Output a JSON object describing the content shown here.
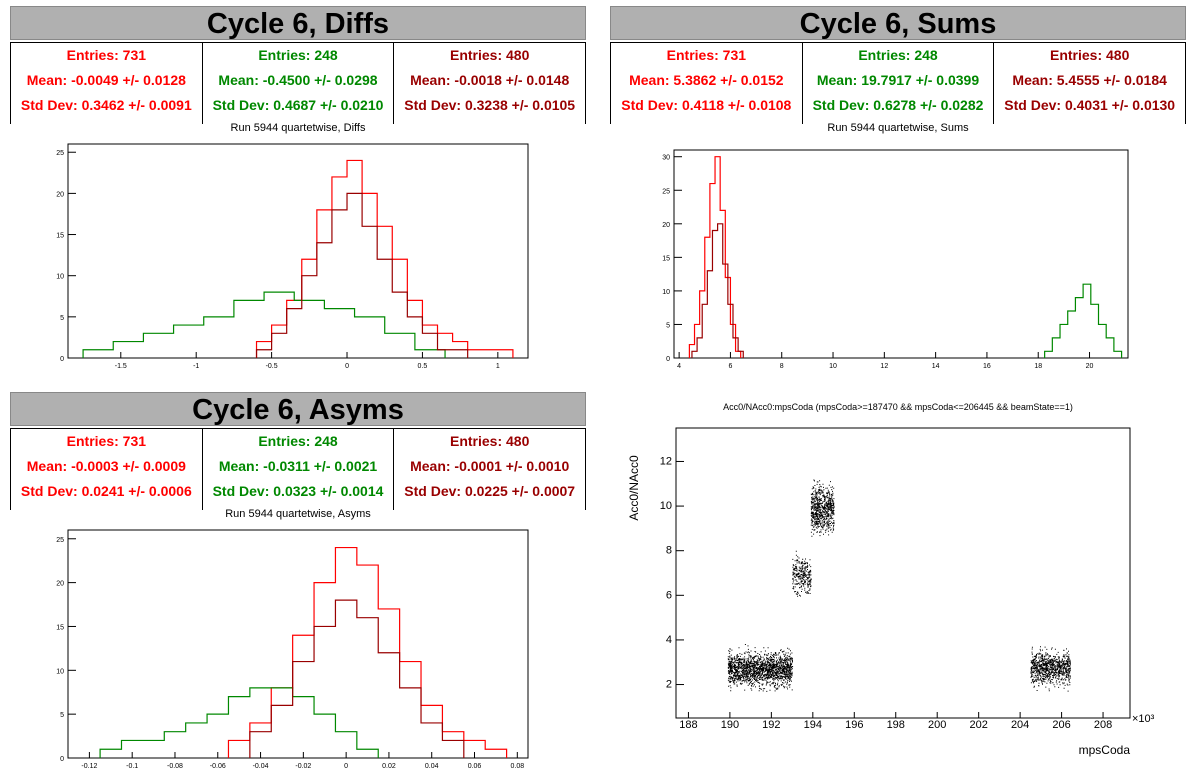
{
  "colors": {
    "red": "#ff0000",
    "green": "#008800",
    "darkred": "#990000",
    "header_bg": "#b0b0b0"
  },
  "panels": {
    "diffs": {
      "title": "Cycle 6, Diffs",
      "subtitle": "Run 5944 quartetwise, Diffs",
      "stats": [
        {
          "entries": "Entries: 731",
          "mean": "Mean: -0.0049 +/- 0.0128",
          "std": "Std Dev: 0.3462 +/- 0.0091",
          "color": "#ff0000"
        },
        {
          "entries": "Entries: 248",
          "mean": "Mean: -0.4500 +/- 0.0298",
          "std": "Std Dev: 0.4687 +/- 0.0210",
          "color": "#008800"
        },
        {
          "entries": "Entries: 480",
          "mean": "Mean: -0.0018 +/- 0.0148",
          "std": "Std Dev: 0.3238 +/- 0.0105",
          "color": "#990000"
        }
      ]
    },
    "sums": {
      "title": "Cycle 6, Sums",
      "subtitle": "Run 5944 quartetwise, Sums",
      "stats": [
        {
          "entries": "Entries: 731",
          "mean": "Mean: 5.3862 +/- 0.0152",
          "std": "Std Dev: 0.4118 +/- 0.0108",
          "color": "#ff0000"
        },
        {
          "entries": "Entries: 248",
          "mean": "Mean: 19.7917 +/- 0.0399",
          "std": "Std Dev: 0.6278 +/- 0.0282",
          "color": "#008800"
        },
        {
          "entries": "Entries: 480",
          "mean": "Mean: 5.4555 +/- 0.0184",
          "std": "Std Dev: 0.4031 +/- 0.0130",
          "color": "#990000"
        }
      ]
    },
    "asyms": {
      "title": "Cycle 6, Asyms",
      "subtitle": "Run 5944 quartetwise, Asyms",
      "stats": [
        {
          "entries": "Entries: 731",
          "mean": "Mean: -0.0003 +/- 0.0009",
          "std": "Std Dev: 0.0241 +/- 0.0006",
          "color": "#ff0000"
        },
        {
          "entries": "Entries: 248",
          "mean": "Mean: -0.0311 +/- 0.0021",
          "std": "Std Dev: 0.0323 +/- 0.0014",
          "color": "#008800"
        },
        {
          "entries": "Entries: 480",
          "mean": "Mean: -0.0001 +/- 0.0010",
          "std": "Std Dev: 0.0225 +/- 0.0007",
          "color": "#990000"
        }
      ]
    },
    "scatter": {
      "title": "Acc0/NAcc0:mpsCoda (mpsCoda>=187470 && mpsCoda<=206445 && beamState==1)"
    }
  },
  "chart_data": [
    {
      "type": "histogram-step",
      "title": "Run 5944 quartetwise, Diffs",
      "xlim": [
        -1.85,
        1.2
      ],
      "ylim": [
        0,
        26
      ],
      "x_ticks": [
        -1.5,
        -1,
        -0.5,
        0,
        0.5,
        1
      ],
      "x_tick_labels": [
        "-1.5",
        "-1",
        "-0.5",
        "0",
        "0.5",
        "1"
      ],
      "y_ticks": [
        0,
        5,
        10,
        15,
        20,
        25
      ],
      "series": [
        {
          "color": "#ff0000",
          "centers": [
            -0.55,
            -0.45,
            -0.35,
            -0.25,
            -0.15,
            -0.05,
            0.05,
            0.15,
            0.25,
            0.35,
            0.45,
            0.55,
            0.65,
            0.75,
            0.85,
            0.95,
            1.05
          ],
          "counts": [
            2,
            4,
            7,
            12,
            18,
            22,
            24,
            20,
            16,
            12,
            7,
            4,
            3,
            2,
            1,
            1,
            1
          ]
        },
        {
          "color": "#008800",
          "centers": [
            -1.65,
            -1.45,
            -1.25,
            -1.05,
            -0.85,
            -0.65,
            -0.45,
            -0.25,
            -0.05,
            0.15,
            0.35,
            0.55
          ],
          "counts": [
            1,
            2,
            3,
            4,
            5,
            7,
            8,
            7,
            6,
            5,
            3,
            1
          ]
        },
        {
          "color": "#990000",
          "centers": [
            -0.55,
            -0.45,
            -0.35,
            -0.25,
            -0.15,
            -0.05,
            0.05,
            0.15,
            0.25,
            0.35,
            0.45,
            0.55,
            0.65,
            0.75
          ],
          "counts": [
            1,
            3,
            6,
            10,
            14,
            18,
            20,
            16,
            12,
            8,
            5,
            3,
            1,
            1
          ]
        }
      ]
    },
    {
      "type": "histogram-step",
      "title": "Run 5944 quartetwise, Sums",
      "xlim": [
        3.8,
        21.5
      ],
      "ylim": [
        0,
        31
      ],
      "x_ticks": [
        4,
        6,
        8,
        10,
        12,
        14,
        16,
        18,
        20
      ],
      "x_tick_labels": [
        "4",
        "6",
        "8",
        "10",
        "12",
        "14",
        "16",
        "18",
        "20"
      ],
      "y_ticks": [
        0,
        5,
        10,
        15,
        20,
        25,
        30
      ],
      "series": [
        {
          "color": "#ff0000",
          "centers": [
            4.5,
            4.7,
            4.9,
            5.1,
            5.3,
            5.5,
            5.7,
            5.9,
            6.1,
            6.3
          ],
          "counts": [
            2,
            5,
            10,
            18,
            26,
            30,
            22,
            12,
            5,
            1
          ]
        },
        {
          "color": "#990000",
          "centers": [
            4.6,
            4.8,
            5.0,
            5.2,
            5.4,
            5.6,
            5.8,
            6.0,
            6.2,
            6.4
          ],
          "counts": [
            1,
            3,
            8,
            13,
            19,
            20,
            14,
            8,
            3,
            1
          ]
        },
        {
          "color": "#008800",
          "centers": [
            18.4,
            18.7,
            19.0,
            19.3,
            19.6,
            19.9,
            20.2,
            20.5,
            20.8,
            21.1
          ],
          "counts": [
            1,
            3,
            5,
            7,
            9,
            11,
            8,
            5,
            3,
            1
          ]
        }
      ]
    },
    {
      "type": "histogram-step",
      "title": "Run 5944 quartetwise, Asyms",
      "xlim": [
        -0.13,
        0.085
      ],
      "ylim": [
        0,
        26
      ],
      "x_ticks": [
        -0.12,
        -0.1,
        -0.08,
        -0.06,
        -0.04,
        -0.02,
        0,
        0.02,
        0.04,
        0.06,
        0.08
      ],
      "x_tick_labels": [
        "-0.12",
        "-0.1",
        "-0.08",
        "-0.06",
        "-0.04",
        "-0.02",
        "0",
        "0.02",
        "0.04",
        "0.06",
        "0.08"
      ],
      "y_ticks": [
        0,
        5,
        10,
        15,
        20,
        25
      ],
      "series": [
        {
          "color": "#ff0000",
          "centers": [
            -0.05,
            -0.04,
            -0.03,
            -0.02,
            -0.01,
            0,
            0.01,
            0.02,
            0.03,
            0.04,
            0.05,
            0.06,
            0.07
          ],
          "counts": [
            2,
            4,
            8,
            14,
            20,
            24,
            22,
            17,
            11,
            6,
            3,
            2,
            1
          ]
        },
        {
          "color": "#008800",
          "centers": [
            -0.11,
            -0.1,
            -0.09,
            -0.08,
            -0.07,
            -0.06,
            -0.05,
            -0.04,
            -0.03,
            -0.02,
            -0.01,
            0,
            0.01
          ],
          "counts": [
            1,
            2,
            2,
            3,
            4,
            5,
            7,
            8,
            8,
            7,
            5,
            3,
            1
          ]
        },
        {
          "color": "#990000",
          "centers": [
            -0.04,
            -0.03,
            -0.02,
            -0.01,
            0,
            0.01,
            0.02,
            0.03,
            0.04,
            0.05
          ],
          "counts": [
            3,
            6,
            11,
            15,
            18,
            16,
            12,
            8,
            4,
            2
          ]
        }
      ]
    },
    {
      "type": "scatter",
      "title": "Acc0/NAcc0:mpsCoda (mpsCoda>=187470 && mpsCoda<=206445 && beamState==1)",
      "xlabel": "mpsCoda",
      "ylabel": "Acc0/NAcc0",
      "x_exponent_label": "×10³",
      "xlim": [
        187.4,
        209.3
      ],
      "ylim": [
        0.5,
        13.5
      ],
      "x_ticks": [
        188,
        190,
        192,
        194,
        196,
        198,
        200,
        202,
        204,
        206,
        208
      ],
      "y_ticks": [
        2,
        4,
        6,
        8,
        10,
        12
      ],
      "clusters": [
        {
          "x_range": [
            189.9,
            193.0
          ],
          "y_mean": 2.7,
          "y_spread": 0.35,
          "n": 1800
        },
        {
          "x_range": [
            193.0,
            193.9
          ],
          "y_mean": 6.9,
          "y_spread": 0.4,
          "n": 300
        },
        {
          "x_range": [
            193.9,
            195.0
          ],
          "y_mean": 9.9,
          "y_spread": 0.5,
          "n": 700
        },
        {
          "x_range": [
            204.5,
            206.4
          ],
          "y_mean": 2.75,
          "y_spread": 0.35,
          "n": 900
        }
      ]
    }
  ]
}
